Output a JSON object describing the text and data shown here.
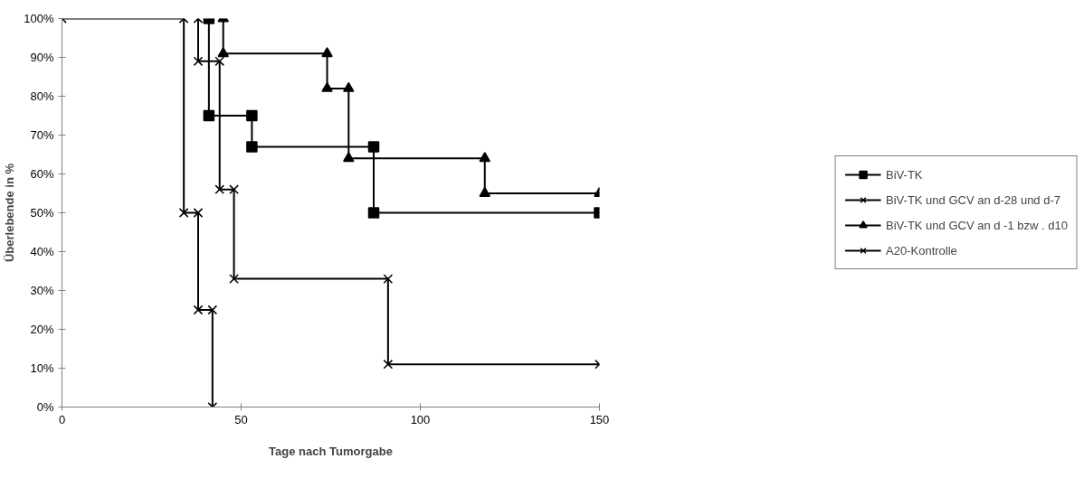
{
  "chart_data": {
    "type": "line",
    "xlabel": "Tage nach Tumorgabe",
    "ylabel": "Überlebende in %",
    "xlim": [
      0,
      150
    ],
    "xticks": [
      0,
      50,
      100,
      150
    ],
    "ylim": [
      0,
      100
    ],
    "yticks": [
      {
        "value": 0,
        "label": "0%"
      },
      {
        "value": 10,
        "label": "10%"
      },
      {
        "value": 20,
        "label": "20%"
      },
      {
        "value": 30,
        "label": "30%"
      },
      {
        "value": 40,
        "label": "40%"
      },
      {
        "value": 50,
        "label": "50%"
      },
      {
        "value": 60,
        "label": "60%"
      },
      {
        "value": 70,
        "label": "70%"
      },
      {
        "value": 80,
        "label": "80%"
      },
      {
        "value": 90,
        "label": "90%"
      },
      {
        "value": 100,
        "label": "100%"
      }
    ],
    "grid": false,
    "legend": "right",
    "line_style": "solid",
    "series": [
      {
        "name": "BiV-TK",
        "color": "#000000",
        "marker": "square",
        "x": [
          41,
          41,
          53,
          53,
          87,
          87,
          150
        ],
        "values": [
          100,
          75,
          75,
          67,
          67,
          50,
          50
        ]
      },
      {
        "name": "BiV-TK und GCV an d-28 und d-7",
        "color": "#000000",
        "marker": "cross",
        "x": [
          38,
          38,
          44,
          44,
          48,
          48,
          91,
          91,
          150
        ],
        "values": [
          100,
          89,
          89,
          56,
          56,
          33,
          33,
          11,
          11
        ]
      },
      {
        "name": "BiV-TK und GCV an d -1 bzw . d10",
        "color": "#000000",
        "marker": "triangle",
        "x": [
          45,
          45,
          74,
          74,
          80,
          80,
          118,
          118,
          150
        ],
        "values": [
          100,
          91,
          91,
          82,
          82,
          64,
          64,
          55,
          55
        ]
      },
      {
        "name": "A20-Kontrolle",
        "color": "#000000",
        "marker": "cross",
        "x": [
          0,
          34,
          34,
          38,
          38,
          42,
          42
        ],
        "values": [
          100,
          100,
          50,
          50,
          25,
          25,
          0
        ]
      }
    ]
  }
}
